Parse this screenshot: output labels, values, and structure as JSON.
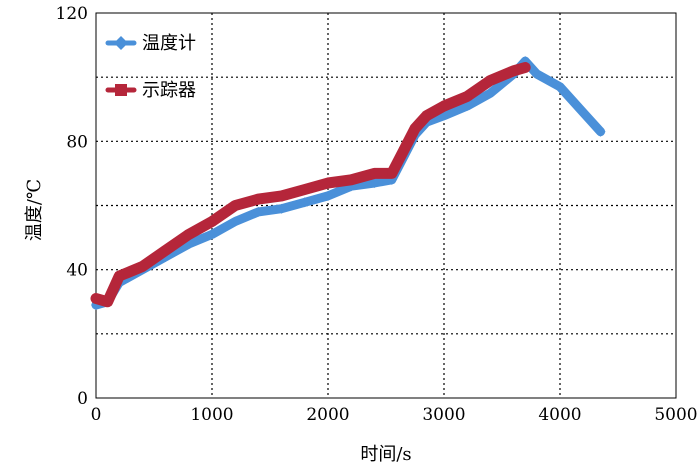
{
  "chart_data": {
    "type": "line",
    "xlabel": "时间/s",
    "ylabel": "温度/℃",
    "xlim": [
      0,
      5000
    ],
    "ylim": [
      0,
      120
    ],
    "x_ticks": [
      0,
      1000,
      2000,
      3000,
      4000,
      5000
    ],
    "y_ticks": [
      0,
      40,
      80,
      120
    ],
    "y_grid": [
      20,
      40,
      60,
      80,
      100
    ],
    "grid": "dotted",
    "legend_position": "top-left",
    "series": [
      {
        "name": "温度计",
        "color": "#4a90d9",
        "marker": "diamond",
        "x": [
          0,
          100,
          200,
          400,
          600,
          800,
          1000,
          1200,
          1400,
          1600,
          1800,
          2000,
          2200,
          2400,
          2550,
          2650,
          2750,
          2850,
          3000,
          3200,
          3400,
          3600,
          3700,
          3800,
          4000,
          4200,
          4350
        ],
        "y": [
          29,
          30,
          36,
          40,
          44,
          48,
          51,
          55,
          58,
          59,
          61,
          63,
          66,
          67,
          68,
          75,
          82,
          86,
          88,
          91,
          95,
          101,
          105,
          101,
          97,
          89,
          83
        ]
      },
      {
        "name": "示踪器",
        "color": "#b5263a",
        "marker": "square",
        "x": [
          0,
          100,
          200,
          400,
          600,
          800,
          1000,
          1200,
          1400,
          1600,
          1800,
          2000,
          2200,
          2400,
          2550,
          2650,
          2750,
          2850,
          3000,
          3200,
          3400,
          3600,
          3700
        ],
        "y": [
          31,
          30,
          38,
          41,
          46,
          51,
          55,
          60,
          62,
          63,
          65,
          67,
          68,
          70,
          70,
          77,
          84,
          88,
          91,
          94,
          99,
          102,
          103
        ]
      }
    ]
  }
}
